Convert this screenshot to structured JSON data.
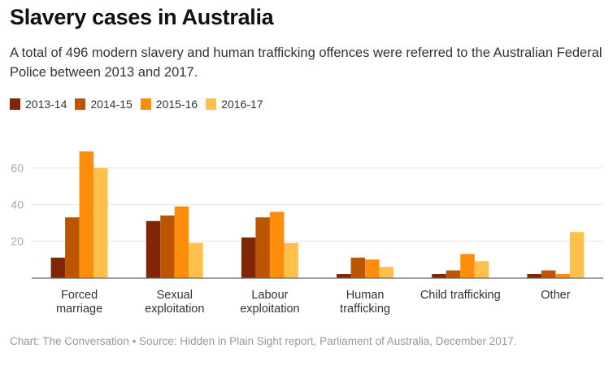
{
  "title": "Slavery cases in Australia",
  "subtitle": "A total of 496 modern slavery and human trafficking offences were referred to the Australian Federal Police between 2013 and 2017.",
  "footer": "Chart: The Conversation • Source: Hidden in Plain Sight report, Parliament of Australia, December 2017.",
  "chart_data": {
    "type": "bar",
    "title": "Slavery cases in Australia",
    "xlabel": "",
    "ylabel": "",
    "ylim": [
      0,
      73
    ],
    "yticks": [
      20,
      40,
      60
    ],
    "grid": true,
    "legend_placement": "top-left",
    "categories": [
      "Forced marriage",
      "Sexual exploitation",
      "Labour exploitation",
      "Human trafficking",
      "Child trafficking",
      "Other"
    ],
    "category_lines": [
      [
        "Forced",
        "marriage"
      ],
      [
        "Sexual",
        "exploitation"
      ],
      [
        "Labour",
        "exploitation"
      ],
      [
        "Human",
        "trafficking"
      ],
      [
        "Child trafficking"
      ],
      [
        "Other"
      ]
    ],
    "series": [
      {
        "name": "2013-14",
        "color": "#7f2704",
        "values": [
          11,
          31,
          22,
          2,
          2,
          2
        ]
      },
      {
        "name": "2014-15",
        "color": "#bb5500",
        "values": [
          33,
          34,
          33,
          11,
          4,
          4
        ]
      },
      {
        "name": "2015-16",
        "color": "#fd8d0a",
        "values": [
          69,
          39,
          36,
          10,
          13,
          2
        ]
      },
      {
        "name": "2016-17",
        "color": "#ffc04c",
        "values": [
          60,
          19,
          19,
          6,
          9,
          25
        ]
      }
    ]
  }
}
